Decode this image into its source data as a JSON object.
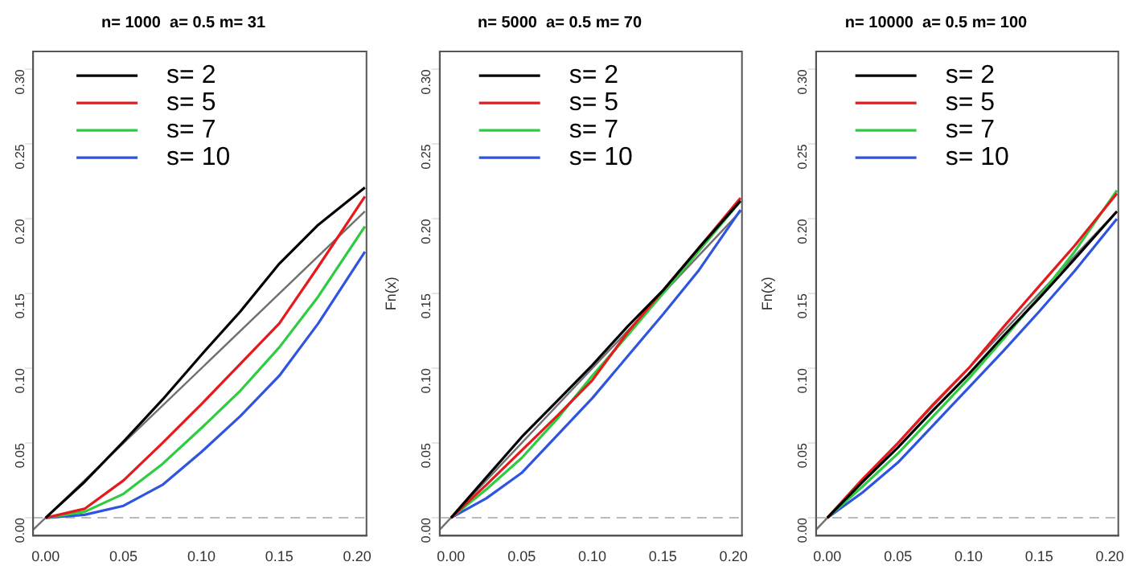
{
  "chart_data": [
    {
      "type": "line",
      "title": "n= 1000  a= 0.5 m= 31",
      "xlim": [
        -0.008,
        0.206
      ],
      "ylim": [
        -0.012,
        0.312
      ],
      "xticks": [
        {
          "value": 0,
          "label": "0.00"
        },
        {
          "value": 0.05,
          "label": "0.05"
        },
        {
          "value": 0.1,
          "label": "0.10"
        },
        {
          "value": 0.15,
          "label": "0.15"
        },
        {
          "value": 0.2,
          "label": "0.20"
        }
      ],
      "yticks": [
        {
          "value": 0,
          "label": "0.00"
        },
        {
          "value": 0.05,
          "label": "0.05"
        },
        {
          "value": 0.1,
          "label": "0.10"
        },
        {
          "value": 0.15,
          "label": "0.15"
        },
        {
          "value": 0.2,
          "label": "0.20"
        },
        {
          "value": 0.25,
          "label": "0.25"
        },
        {
          "value": 0.3,
          "label": "0.30"
        }
      ],
      "grid": false,
      "legend": "top left",
      "marker": "none",
      "line_style": "solid",
      "ref_lines": [
        {
          "axis": "y",
          "value": 0,
          "color": "#bbbbbb",
          "line_style": "dashed"
        }
      ],
      "series": [
        {
          "name": "s= 2",
          "color": "#000000",
          "x": [
            0,
            0.025,
            0.05,
            0.075,
            0.1,
            0.125,
            0.15,
            0.175,
            0.205
          ],
          "values": [
            0,
            0.024,
            0.051,
            0.079,
            0.109,
            0.138,
            0.17,
            0.196,
            0.221
          ]
        },
        {
          "name": "s= 5",
          "color": "#e41a1c",
          "x": [
            0,
            0.025,
            0.05,
            0.075,
            0.1,
            0.125,
            0.15,
            0.175,
            0.205
          ],
          "values": [
            0,
            0.006,
            0.025,
            0.05,
            0.076,
            0.103,
            0.13,
            0.168,
            0.215
          ]
        },
        {
          "name": "s= 7",
          "color": "#2ecc40",
          "x": [
            0,
            0.025,
            0.05,
            0.075,
            0.1,
            0.125,
            0.15,
            0.175,
            0.205
          ],
          "values": [
            0,
            0.004,
            0.016,
            0.036,
            0.06,
            0.085,
            0.114,
            0.148,
            0.195
          ]
        },
        {
          "name": "s= 10",
          "color": "#2f55e0",
          "x": [
            0,
            0.025,
            0.05,
            0.075,
            0.1,
            0.125,
            0.15,
            0.175,
            0.205
          ],
          "values": [
            0,
            0.002,
            0.008,
            0.022,
            0.044,
            0.068,
            0.095,
            0.13,
            0.178
          ]
        },
        {
          "color": "#707070",
          "x": [
            -0.008,
            0.205
          ],
          "values": [
            -0.008,
            0.205
          ]
        }
      ]
    },
    {
      "type": "line",
      "title": "n= 5000  a= 0.5 m= 70",
      "ylabel": "Fn(x)",
      "xlim": [
        -0.008,
        0.206
      ],
      "ylim": [
        -0.012,
        0.312
      ],
      "xticks": [
        {
          "value": 0,
          "label": "0.00"
        },
        {
          "value": 0.05,
          "label": "0.05"
        },
        {
          "value": 0.1,
          "label": "0.10"
        },
        {
          "value": 0.15,
          "label": "0.15"
        },
        {
          "value": 0.2,
          "label": "0.20"
        }
      ],
      "yticks": [
        {
          "value": 0,
          "label": "0.00"
        },
        {
          "value": 0.05,
          "label": "0.05"
        },
        {
          "value": 0.1,
          "label": "0.10"
        },
        {
          "value": 0.15,
          "label": "0.15"
        },
        {
          "value": 0.2,
          "label": "0.20"
        },
        {
          "value": 0.25,
          "label": "0.25"
        },
        {
          "value": 0.3,
          "label": "0.30"
        }
      ],
      "grid": false,
      "legend": "top left",
      "marker": "none",
      "line_style": "solid",
      "ref_lines": [
        {
          "axis": "y",
          "value": 0,
          "color": "#bbbbbb",
          "line_style": "dashed"
        }
      ],
      "series": [
        {
          "name": "s= 2",
          "color": "#000000",
          "x": [
            0,
            0.025,
            0.05,
            0.075,
            0.1,
            0.125,
            0.15,
            0.175,
            0.205
          ],
          "values": [
            0,
            0.027,
            0.054,
            0.078,
            0.102,
            0.128,
            0.152,
            0.18,
            0.212
          ]
        },
        {
          "name": "s= 5",
          "color": "#e41a1c",
          "x": [
            0,
            0.025,
            0.05,
            0.075,
            0.1,
            0.125,
            0.15,
            0.175,
            0.205
          ],
          "values": [
            0,
            0.022,
            0.045,
            0.068,
            0.092,
            0.124,
            0.152,
            0.18,
            0.214
          ]
        },
        {
          "name": "s= 7",
          "color": "#2ecc40",
          "x": [
            0,
            0.025,
            0.05,
            0.075,
            0.1,
            0.125,
            0.15,
            0.175,
            0.205
          ],
          "values": [
            0,
            0.019,
            0.04,
            0.066,
            0.095,
            0.122,
            0.15,
            0.178,
            0.212
          ]
        },
        {
          "name": "s= 10",
          "color": "#2f55e0",
          "x": [
            0,
            0.025,
            0.05,
            0.075,
            0.1,
            0.125,
            0.15,
            0.175,
            0.205
          ],
          "values": [
            0,
            0.013,
            0.03,
            0.055,
            0.08,
            0.108,
            0.136,
            0.165,
            0.206
          ]
        },
        {
          "color": "#707070",
          "x": [
            -0.008,
            0.205
          ],
          "values": [
            -0.008,
            0.205
          ]
        }
      ]
    },
    {
      "type": "line",
      "title": "n= 10000  a= 0.5 m= 100",
      "ylabel": "Fn(x)",
      "xlim": [
        -0.008,
        0.206
      ],
      "ylim": [
        -0.012,
        0.312
      ],
      "xticks": [
        {
          "value": 0,
          "label": "0.00"
        },
        {
          "value": 0.05,
          "label": "0.05"
        },
        {
          "value": 0.1,
          "label": "0.10"
        },
        {
          "value": 0.15,
          "label": "0.15"
        },
        {
          "value": 0.2,
          "label": "0.20"
        }
      ],
      "yticks": [
        {
          "value": 0,
          "label": "0.00"
        },
        {
          "value": 0.05,
          "label": "0.05"
        },
        {
          "value": 0.1,
          "label": "0.10"
        },
        {
          "value": 0.15,
          "label": "0.15"
        },
        {
          "value": 0.2,
          "label": "0.20"
        },
        {
          "value": 0.25,
          "label": "0.25"
        },
        {
          "value": 0.3,
          "label": "0.30"
        }
      ],
      "grid": false,
      "legend": "top left",
      "marker": "none",
      "line_style": "solid",
      "ref_lines": [
        {
          "axis": "y",
          "value": 0,
          "color": "#bbbbbb",
          "line_style": "dashed"
        }
      ],
      "series": [
        {
          "name": "s= 2",
          "color": "#000000",
          "x": [
            0,
            0.025,
            0.05,
            0.075,
            0.1,
            0.125,
            0.15,
            0.175,
            0.205
          ],
          "values": [
            0,
            0.024,
            0.047,
            0.072,
            0.096,
            0.122,
            0.147,
            0.173,
            0.205
          ]
        },
        {
          "name": "s= 5",
          "color": "#e41a1c",
          "x": [
            0,
            0.025,
            0.05,
            0.075,
            0.1,
            0.125,
            0.15,
            0.175,
            0.205
          ],
          "values": [
            0,
            0.026,
            0.05,
            0.076,
            0.1,
            0.128,
            0.155,
            0.182,
            0.217
          ]
        },
        {
          "name": "s= 7",
          "color": "#2ecc40",
          "x": [
            0,
            0.025,
            0.05,
            0.075,
            0.1,
            0.125,
            0.15,
            0.175,
            0.205
          ],
          "values": [
            0,
            0.021,
            0.043,
            0.068,
            0.093,
            0.12,
            0.148,
            0.178,
            0.219
          ]
        },
        {
          "name": "s= 10",
          "color": "#2f55e0",
          "x": [
            0,
            0.025,
            0.05,
            0.075,
            0.1,
            0.125,
            0.15,
            0.175,
            0.205
          ],
          "values": [
            0,
            0.017,
            0.037,
            0.062,
            0.087,
            0.112,
            0.138,
            0.165,
            0.2
          ]
        },
        {
          "color": "#707070",
          "x": [
            -0.008,
            0.205
          ],
          "values": [
            -0.008,
            0.205
          ]
        }
      ]
    }
  ]
}
